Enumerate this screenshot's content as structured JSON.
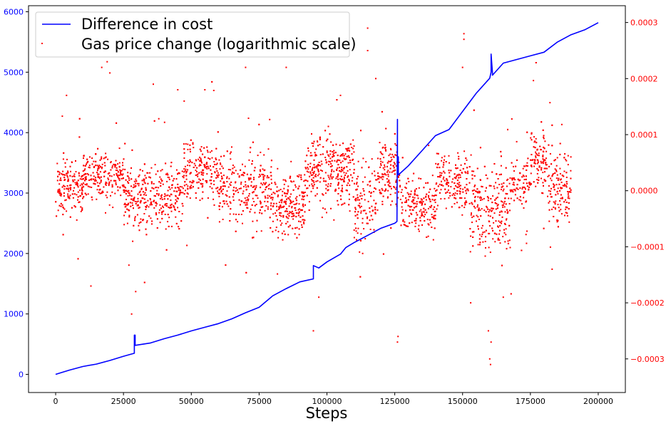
{
  "chart_data": {
    "type": "line+scatter",
    "title": "",
    "xlabel": "Steps",
    "xlim": [
      -10000,
      210000
    ],
    "xticks": [
      0,
      25000,
      50000,
      75000,
      100000,
      125000,
      150000,
      175000,
      200000
    ],
    "y_left": {
      "lim": [
        -300,
        6100
      ],
      "ticks": [
        0,
        1000,
        2000,
        3000,
        4000,
        5000,
        6000
      ],
      "color": "#0000ff"
    },
    "y_right": {
      "lim": [
        -0.00036,
        0.00033
      ],
      "ticks": [
        -0.0003,
        -0.0002,
        -0.0001,
        0.0,
        0.0001,
        0.0002,
        0.0003
      ],
      "tick_labels": [
        "−0.0003",
        "−0.0002",
        "−0.0001",
        "0.0000",
        "0.0001",
        "0.0002",
        "0.0003"
      ],
      "color": "#ff0000"
    },
    "legend": {
      "placement": "top-left",
      "entries": [
        {
          "label": "Difference in cost",
          "kind": "line",
          "color": "#0000ff"
        },
        {
          "label": "Gas price change (logarithmic scale)",
          "kind": "marker",
          "color": "#ff0000"
        }
      ]
    },
    "series": [
      {
        "name": "Difference in cost",
        "axis": "left",
        "style": "line",
        "color": "#0000ff",
        "x": [
          0,
          5000,
          10000,
          15000,
          20000,
          25000,
          29000,
          29000,
          29300,
          29300,
          35000,
          40000,
          45000,
          50000,
          55000,
          60000,
          65000,
          70000,
          75000,
          80000,
          85000,
          90000,
          95000,
          95000,
          97000,
          100000,
          105000,
          107000,
          110000,
          115000,
          120000,
          125000,
          125800,
          126000,
          126000,
          126300,
          126300,
          130000,
          135000,
          140000,
          145000,
          150000,
          155000,
          160000,
          160500,
          160500,
          161000,
          161000,
          165000,
          170000,
          175000,
          180000,
          185000,
          190000,
          195000,
          200000
        ],
        "y": [
          0,
          70,
          130,
          170,
          230,
          300,
          350,
          650,
          650,
          480,
          520,
          590,
          650,
          720,
          780,
          840,
          920,
          1020,
          1110,
          1300,
          1420,
          1530,
          1580,
          1800,
          1760,
          1860,
          1990,
          2100,
          2180,
          2300,
          2420,
          2500,
          2530,
          4220,
          3600,
          3600,
          3300,
          3450,
          3700,
          3950,
          4050,
          4350,
          4650,
          4900,
          5000,
          5300,
          5000,
          4950,
          5150,
          5210,
          5270,
          5330,
          5500,
          5620,
          5700,
          5820
        ]
      },
      {
        "name": "Gas price change (logarithmic scale)",
        "axis": "right",
        "style": "scatter",
        "color": "#ff0000",
        "x_range": [
          0,
          190000
        ],
        "n_points": 4000,
        "segments": [
          {
            "x": [
              0,
              10000
            ],
            "center": 5e-06,
            "spread": 2.5e-05
          },
          {
            "x": [
              10000,
              25000
            ],
            "center": 2.5e-05,
            "spread": 2e-05
          },
          {
            "x": [
              25000,
              47000
            ],
            "center": -8e-06,
            "spread": 2.8e-05
          },
          {
            "x": [
              47000,
              60000
            ],
            "center": 3.5e-05,
            "spread": 2.5e-05
          },
          {
            "x": [
              60000,
              70000
            ],
            "center": 5e-06,
            "spread": 3e-05
          },
          {
            "x": [
              70000,
              80000
            ],
            "center": 5e-06,
            "spread": 3e-05
          },
          {
            "x": [
              80000,
              92000
            ],
            "center": -2.5e-05,
            "spread": 3e-05
          },
          {
            "x": [
              92000,
              110000
            ],
            "center": 3.5e-05,
            "spread": 3e-05
          },
          {
            "x": [
              110000,
              118000
            ],
            "center": -2e-05,
            "spread": 3.5e-05
          },
          {
            "x": [
              118000,
              127000
            ],
            "center": 3e-05,
            "spread": 3e-05
          },
          {
            "x": [
              127000,
              140000
            ],
            "center": -3e-05,
            "spread": 2.5e-05
          },
          {
            "x": [
              140000,
              152000
            ],
            "center": 2e-05,
            "spread": 2.5e-05
          },
          {
            "x": [
              152000,
              168000
            ],
            "center": -3e-05,
            "spread": 4e-05
          },
          {
            "x": [
              168000,
              175000
            ],
            "center": 1.5e-05,
            "spread": 2.5e-05
          },
          {
            "x": [
              175000,
              181000
            ],
            "center": 6e-05,
            "spread": 3e-05
          },
          {
            "x": [
              181000,
              190000
            ],
            "center": 5e-06,
            "spread": 3.5e-05
          }
        ],
        "outliers": [
          {
            "x": 17000,
            "y": 0.00022
          },
          {
            "x": 19000,
            "y": 0.00023
          },
          {
            "x": 20000,
            "y": 0.00021
          },
          {
            "x": 4000,
            "y": 0.00017
          },
          {
            "x": 28000,
            "y": -0.00022
          },
          {
            "x": 29500,
            "y": -0.00018
          },
          {
            "x": 36000,
            "y": 0.00019
          },
          {
            "x": 70000,
            "y": 0.00022
          },
          {
            "x": 85000,
            "y": 0.00022
          },
          {
            "x": 95000,
            "y": -0.00025
          },
          {
            "x": 97000,
            "y": -0.00019
          },
          {
            "x": 115000,
            "y": 0.00029
          },
          {
            "x": 115000,
            "y": 0.00025
          },
          {
            "x": 118000,
            "y": 0.0002
          },
          {
            "x": 126000,
            "y": -0.00027
          },
          {
            "x": 126200,
            "y": -0.00026
          },
          {
            "x": 150500,
            "y": 0.00028
          },
          {
            "x": 150500,
            "y": 0.00027
          },
          {
            "x": 150000,
            "y": 0.00022
          },
          {
            "x": 153000,
            "y": -0.0002
          },
          {
            "x": 160000,
            "y": -0.0003
          },
          {
            "x": 160300,
            "y": -0.00031
          },
          {
            "x": 160500,
            "y": -0.00027
          },
          {
            "x": 159500,
            "y": -0.00025
          },
          {
            "x": 165000,
            "y": -0.00019
          },
          {
            "x": 183000,
            "y": -0.00014
          },
          {
            "x": 13000,
            "y": -0.00017
          },
          {
            "x": 45000,
            "y": 0.00018
          },
          {
            "x": 55000,
            "y": 0.00018
          },
          {
            "x": 105000,
            "y": 0.00017
          }
        ]
      }
    ]
  }
}
